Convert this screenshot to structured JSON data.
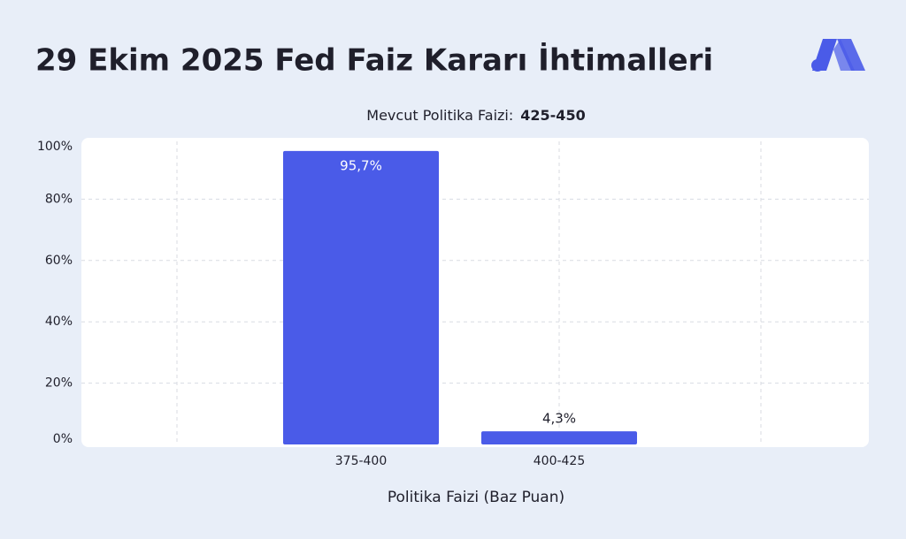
{
  "chart_data": {
    "type": "bar",
    "title": "29 Ekim 2025 Fed Faiz Kararı İhtimalleri",
    "subtitle": "Mevcut Politika Faizi:",
    "current_rate": "425-450",
    "x_label": "Politika Faizi (Baz Puan)",
    "categories": [
      "375-400",
      "400-425"
    ],
    "values": [
      95.7,
      4.3
    ],
    "value_labels": [
      "95,7%",
      "4,3%"
    ],
    "color": "#4a5be8",
    "ylim": [
      0,
      100
    ],
    "yticks": [
      {
        "value": 0,
        "label": "0%"
      },
      {
        "value": 20,
        "label": "20%"
      },
      {
        "value": 40,
        "label": "40%"
      },
      {
        "value": 60,
        "label": "60%"
      },
      {
        "value": 80,
        "label": "80%"
      },
      {
        "value": 100,
        "label": "100%"
      }
    ],
    "grid": true
  }
}
